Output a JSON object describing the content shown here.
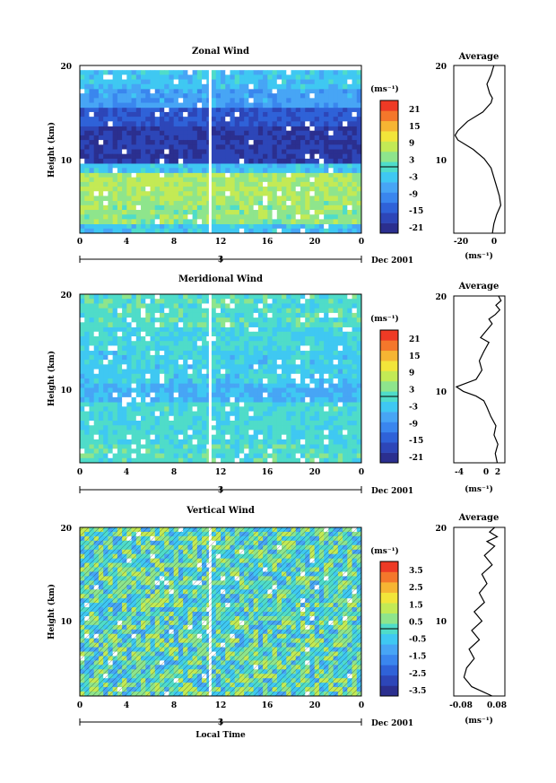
{
  "colors": {
    "scale": [
      "#2b2f8f",
      "#2d46b8",
      "#2f62d8",
      "#3a86ee",
      "#47a5f5",
      "#3fc8f2",
      "#4fdcc9",
      "#8ee58c",
      "#c3ea55",
      "#f2e53a",
      "#f6b533",
      "#f4772b",
      "#ee3a25"
    ],
    "line": "#000000"
  },
  "panels": [
    {
      "title": "Zonal Wind",
      "ylabel": "Height (km)",
      "unit": "(ms⁻¹)",
      "ytick_labels": [
        "20",
        "10"
      ],
      "xtick_labels": [
        "0",
        "4",
        "8",
        "12",
        "16",
        "20",
        "0"
      ],
      "date_tick": "3",
      "date_label": "Dec 2001",
      "colorbar_labels": [
        "21",
        "15",
        "9",
        "3",
        "-3",
        "-9",
        "-15",
        "-21"
      ],
      "profile_title": "Average",
      "profile_unit": "(ms⁻¹)",
      "profile_xtick_labels": [
        "-20",
        "0"
      ],
      "profile_ytick_labels": [
        "20",
        "10"
      ]
    },
    {
      "title": "Meridional Wind",
      "ylabel": "Height (km)",
      "unit": "(ms⁻¹)",
      "ytick_labels": [
        "20",
        "10"
      ],
      "xtick_labels": [
        "0",
        "4",
        "8",
        "12",
        "16",
        "20",
        "0"
      ],
      "date_tick": "3",
      "date_label": "Dec 2001",
      "colorbar_labels": [
        "21",
        "15",
        "9",
        "3",
        "-3",
        "-9",
        "-15",
        "-21"
      ],
      "profile_title": "Average",
      "profile_unit": "(ms⁻¹)",
      "profile_xtick_labels": [
        "-4",
        "0",
        "2"
      ],
      "profile_ytick_labels": [
        "20",
        "10"
      ]
    },
    {
      "title": "Vertical Wind",
      "ylabel": "Height (km)",
      "unit": "(ms⁻¹)",
      "ytick_labels": [
        "20",
        "10"
      ],
      "xtick_labels": [
        "0",
        "4",
        "8",
        "12",
        "16",
        "20",
        "0"
      ],
      "date_tick": "3",
      "date_label": "Dec 2001",
      "xlabel": "Local Time",
      "colorbar_labels": [
        "3.5",
        "2.5",
        "1.5",
        "0.5",
        "-0.5",
        "-1.5",
        "-2.5",
        "-3.5"
      ],
      "profile_title": "Average",
      "profile_unit": "(ms⁻¹)",
      "profile_xtick_labels": [
        "-0.08",
        "0.08"
      ],
      "profile_ytick_labels": [
        "20",
        "10"
      ]
    }
  ],
  "chart_data": [
    {
      "type": "heatmap",
      "title": "Zonal Wind",
      "ylabel": "Height (km)",
      "xlabel": "",
      "xlim": [
        0,
        24
      ],
      "ylim": [
        2,
        20
      ],
      "colorbar_range": [
        -24,
        24
      ],
      "colorbar_unit": "ms-1",
      "bands": [
        {
          "z_bottom": 2.0,
          "z_top": 3.0,
          "value": -4
        },
        {
          "z_bottom": 3.0,
          "z_top": 5.5,
          "value": 4
        },
        {
          "z_bottom": 5.5,
          "z_top": 8.5,
          "value": 6
        },
        {
          "z_bottom": 8.5,
          "z_top": 9.5,
          "value": -4
        },
        {
          "z_bottom": 9.5,
          "z_top": 13.5,
          "value": -20
        },
        {
          "z_bottom": 13.5,
          "z_top": 15.5,
          "value": -16
        },
        {
          "z_bottom": 15.5,
          "z_top": 17.5,
          "value": -8
        },
        {
          "z_bottom": 17.5,
          "z_top": 19.5,
          "value": -4
        }
      ],
      "profile": {
        "title": "Average",
        "xlim": [
          -30,
          7
        ],
        "x": [
          -2,
          -1,
          1,
          4,
          3,
          1,
          -1,
          -3,
          -8,
          -16,
          -27,
          -29,
          -27,
          -20,
          -9,
          -3,
          -2,
          -4,
          -6,
          -3,
          -1
        ],
        "y": [
          2,
          3,
          4,
          5,
          6,
          7,
          8,
          9,
          10,
          11,
          12,
          12.5,
          13,
          14,
          15,
          16,
          16.5,
          17,
          18,
          19,
          20
        ]
      }
    },
    {
      "type": "heatmap",
      "title": "Meridional Wind",
      "ylabel": "Height (km)",
      "xlabel": "",
      "xlim": [
        0,
        24
      ],
      "ylim": [
        2,
        20
      ],
      "colorbar_range": [
        -24,
        24
      ],
      "colorbar_unit": "ms-1",
      "bands": [
        {
          "z_bottom": 2.0,
          "z_top": 4.0,
          "value": 0
        },
        {
          "z_bottom": 4.0,
          "z_top": 8.5,
          "value": -1
        },
        {
          "z_bottom": 8.5,
          "z_top": 10.5,
          "value": -6
        },
        {
          "z_bottom": 10.5,
          "z_top": 14.0,
          "value": -3
        },
        {
          "z_bottom": 14.0,
          "z_top": 16.5,
          "value": -2
        },
        {
          "z_bottom": 16.5,
          "z_top": 20.0,
          "value": 0
        }
      ],
      "profile": {
        "title": "Average",
        "xlim": [
          -5,
          3
        ],
        "x": [
          1.8,
          1.5,
          1.9,
          1.3,
          1.6,
          0.8,
          0.2,
          -0.3,
          -1.5,
          -3.5,
          -4.6,
          -1.5,
          -0.6,
          -1.0,
          -0.3,
          0.5,
          -0.8,
          -0.2,
          1.0,
          0.5,
          1.5,
          2.2,
          1.6,
          2.4,
          2.0
        ],
        "y": [
          2,
          3,
          4,
          5,
          6,
          7,
          8,
          8.7,
          9.2,
          9.7,
          10.2,
          11,
          12,
          13,
          14,
          15,
          15.5,
          16,
          17,
          17.5,
          18,
          18.5,
          19,
          19.5,
          20
        ]
      }
    },
    {
      "type": "heatmap",
      "title": "Vertical Wind",
      "ylabel": "Height (km)",
      "xlabel": "Local Time",
      "xlim": [
        0,
        24
      ],
      "ylim": [
        2,
        20
      ],
      "colorbar_range": [
        -4,
        4
      ],
      "colorbar_unit": "ms-1",
      "bands": [
        {
          "z_bottom": 2.0,
          "z_top": 20.0,
          "value": 0
        }
      ],
      "profile": {
        "title": "Average",
        "xlim": [
          -0.1,
          0.1
        ],
        "x": [
          0.05,
          -0.03,
          -0.06,
          -0.05,
          -0.02,
          -0.04,
          0.0,
          -0.03,
          0.01,
          -0.02,
          0.02,
          0.0,
          0.03,
          0.01,
          0.05,
          0.02,
          0.06,
          0.03,
          0.07,
          0.04,
          0.06
        ],
        "y": [
          2,
          3,
          4,
          5,
          6,
          7,
          8,
          9,
          10,
          11,
          12,
          13,
          14,
          15,
          16,
          17,
          18,
          18.5,
          19,
          19.5,
          20
        ]
      }
    }
  ]
}
